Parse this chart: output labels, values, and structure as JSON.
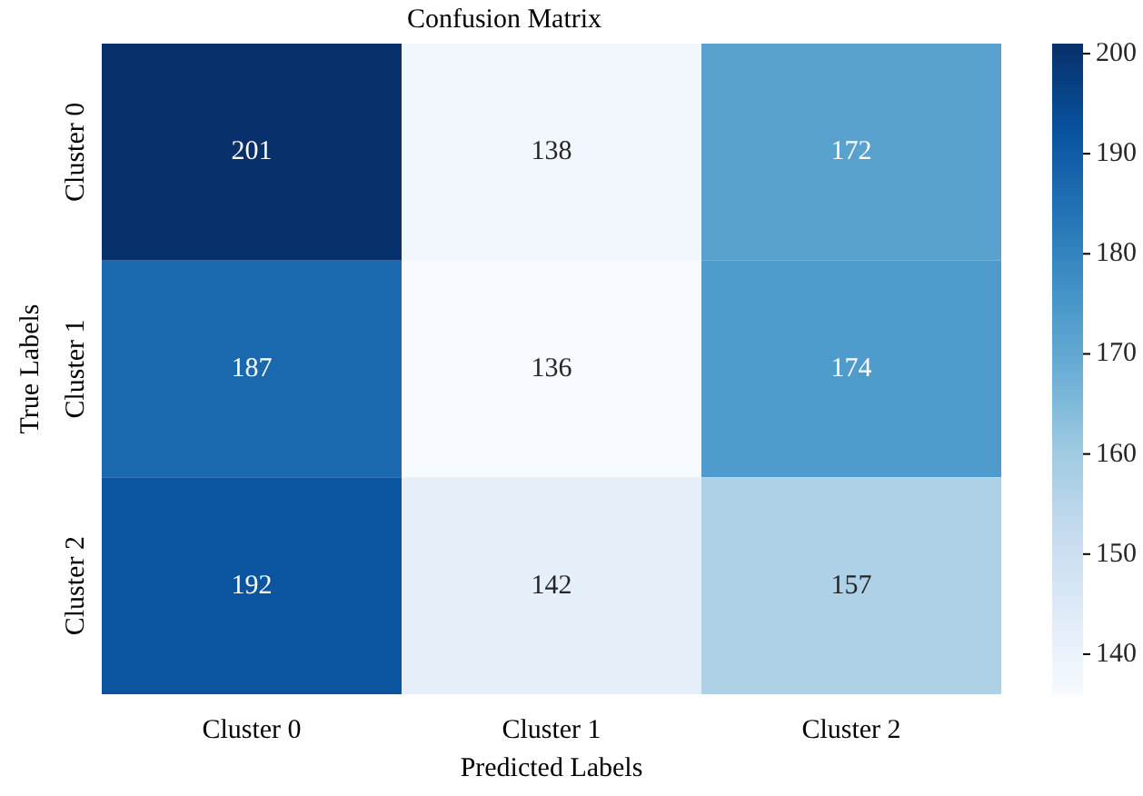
{
  "chart_data": {
    "type": "heatmap",
    "title": "Confusion Matrix",
    "xlabel": "Predicted Labels",
    "ylabel": "True Labels",
    "categories": [
      "Cluster 0",
      "Cluster 1",
      "Cluster 2"
    ],
    "y_categories": [
      "Cluster 0",
      "Cluster 1",
      "Cluster 2"
    ],
    "cells": [
      [
        201,
        138,
        172
      ],
      [
        187,
        136,
        174
      ],
      [
        192,
        142,
        157
      ]
    ],
    "clim": [
      136,
      201
    ],
    "cticks": [
      140,
      150,
      160,
      170,
      180,
      190,
      200
    ],
    "data_labels": true
  }
}
